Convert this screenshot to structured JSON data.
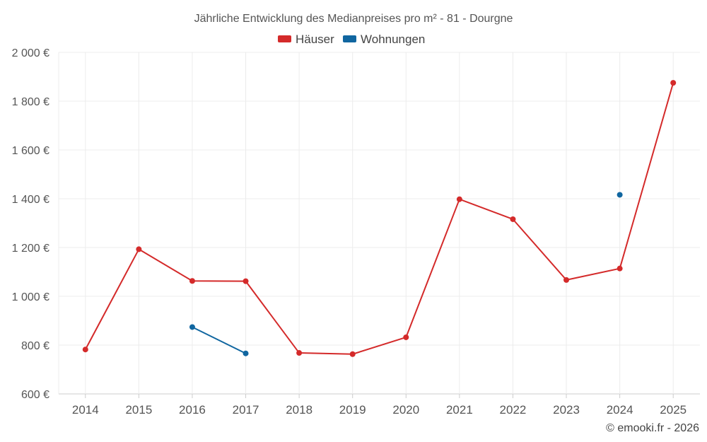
{
  "chart_data": {
    "type": "line",
    "title": "Jährliche Entwicklung des Medianpreises pro m² - 81 - Dourgne",
    "categories": [
      "2014",
      "2015",
      "2016",
      "2017",
      "2018",
      "2019",
      "2020",
      "2021",
      "2022",
      "2023",
      "2024",
      "2025"
    ],
    "y_ticks": [
      "600 €",
      "800 €",
      "1 000 €",
      "1 200 €",
      "1 400 €",
      "1 600 €",
      "1 800 €",
      "2 000 €"
    ],
    "ylim": [
      600,
      2000
    ],
    "xlabel": "",
    "ylabel": "",
    "grid": true,
    "legend_position": "top-center",
    "series": [
      {
        "name": "Häuser",
        "color": "#d42a2a",
        "values": [
          782,
          1193,
          1063,
          1062,
          768,
          763,
          832,
          1398,
          1316,
          1067,
          1114,
          1875
        ]
      },
      {
        "name": "Wohnungen",
        "color": "#1066a0",
        "values": [
          null,
          null,
          874,
          766,
          null,
          null,
          null,
          null,
          null,
          null,
          1416,
          null
        ]
      }
    ],
    "credit": "© emooki.fr - 2026"
  }
}
